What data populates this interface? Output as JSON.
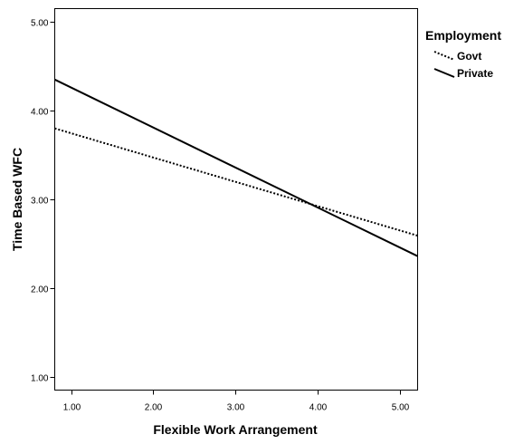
{
  "chart_data": {
    "type": "line",
    "title": "",
    "xlabel": "Flexible Work Arrangement",
    "ylabel": "Time Based WFC",
    "xlim": [
      0.8,
      5.22
    ],
    "ylim": [
      0.85,
      5.15
    ],
    "x_ticks": [
      1.0,
      2.0,
      3.0,
      4.0,
      5.0
    ],
    "x_tick_labels": [
      "1.00",
      "2.00",
      "3.00",
      "4.00",
      "5.00"
    ],
    "y_ticks": [
      1.0,
      2.0,
      3.0,
      4.0,
      5.0
    ],
    "y_tick_labels": [
      "1.00",
      "2.00",
      "3.00",
      "4.00",
      "5.00"
    ],
    "grid": false,
    "legend": {
      "title": "Employment",
      "placement": "right"
    },
    "series": [
      {
        "name": "Govt",
        "style": "dotted",
        "color": "#000000",
        "x": [
          0.8,
          5.22
        ],
        "y": [
          3.8,
          2.59
        ]
      },
      {
        "name": "Private",
        "style": "solid",
        "color": "#000000",
        "x": [
          0.8,
          5.22
        ],
        "y": [
          4.35,
          2.36
        ]
      }
    ]
  }
}
